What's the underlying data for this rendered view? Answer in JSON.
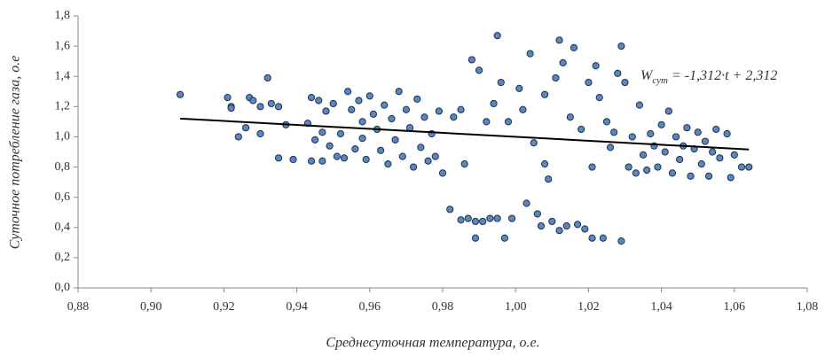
{
  "chart_data": {
    "type": "scatter",
    "y_label": "Суточное потребление газа, о.е",
    "x_label": "Среднесуточная температура, о.е.",
    "color": "#5b87c0",
    "edge_color": "#1f3050",
    "x": [
      0.908,
      0.921,
      0.922,
      0.922,
      0.924,
      0.926,
      0.927,
      0.928,
      0.93,
      0.93,
      0.932,
      0.933,
      0.935,
      0.935,
      0.937,
      0.939,
      0.943,
      0.944,
      0.944,
      0.945,
      0.946,
      0.947,
      0.947,
      0.948,
      0.949,
      0.95,
      0.951,
      0.952,
      0.953,
      0.954,
      0.955,
      0.956,
      0.957,
      0.958,
      0.958,
      0.959,
      0.96,
      0.961,
      0.962,
      0.963,
      0.964,
      0.965,
      0.966,
      0.967,
      0.968,
      0.969,
      0.97,
      0.971,
      0.972,
      0.973,
      0.974,
      0.975,
      0.976,
      0.977,
      0.978,
      0.979,
      0.98,
      0.982,
      0.983,
      0.985,
      0.985,
      0.986,
      0.987,
      0.988,
      0.989,
      0.989,
      0.99,
      0.991,
      0.992,
      0.993,
      0.994,
      0.995,
      0.995,
      0.996,
      0.997,
      0.998,
      0.999,
      1.001,
      1.002,
      1.003,
      1.004,
      1.005,
      1.006,
      1.007,
      1.008,
      1.008,
      1.009,
      1.01,
      1.011,
      1.012,
      1.012,
      1.013,
      1.014,
      1.015,
      1.016,
      1.017,
      1.018,
      1.019,
      1.02,
      1.021,
      1.021,
      1.022,
      1.023,
      1.024,
      1.025,
      1.026,
      1.027,
      1.028,
      1.029,
      1.029,
      1.03,
      1.031,
      1.032,
      1.033,
      1.034,
      1.035,
      1.036,
      1.037,
      1.038,
      1.039,
      1.04,
      1.041,
      1.042,
      1.043,
      1.044,
      1.045,
      1.046,
      1.047,
      1.048,
      1.049,
      1.05,
      1.051,
      1.052,
      1.053,
      1.054,
      1.055,
      1.056,
      1.058,
      1.059,
      1.06,
      1.062,
      1.064
    ],
    "values": [
      1.28,
      1.26,
      1.2,
      1.19,
      1.0,
      1.06,
      1.26,
      1.24,
      1.02,
      1.2,
      1.39,
      1.22,
      1.2,
      0.86,
      1.08,
      0.85,
      1.09,
      1.26,
      0.84,
      0.98,
      1.24,
      1.03,
      0.84,
      1.17,
      0.94,
      1.22,
      0.87,
      1.02,
      0.86,
      1.3,
      1.18,
      0.92,
      1.24,
      1.1,
      0.99,
      0.85,
      1.27,
      1.15,
      1.05,
      0.91,
      1.21,
      0.82,
      1.12,
      0.98,
      1.3,
      0.87,
      1.18,
      1.06,
      0.8,
      1.25,
      0.93,
      1.13,
      0.84,
      1.02,
      0.87,
      1.17,
      0.76,
      0.52,
      1.13,
      0.45,
      1.18,
      0.82,
      0.46,
      1.51,
      0.44,
      0.33,
      1.44,
      0.44,
      1.1,
      0.46,
      1.22,
      1.67,
      0.46,
      1.36,
      0.33,
      1.1,
      0.46,
      1.32,
      1.18,
      0.56,
      1.55,
      0.96,
      0.49,
      0.41,
      1.28,
      0.82,
      0.72,
      0.44,
      1.39,
      1.64,
      0.38,
      1.49,
      0.41,
      1.13,
      1.59,
      0.42,
      1.05,
      0.39,
      1.36,
      0.8,
      0.33,
      1.47,
      1.26,
      0.33,
      1.1,
      0.93,
      1.03,
      1.42,
      1.6,
      0.31,
      1.36,
      0.8,
      1.0,
      0.76,
      1.21,
      0.88,
      0.78,
      1.02,
      0.94,
      0.8,
      1.08,
      0.9,
      1.17,
      0.76,
      1.0,
      0.85,
      0.94,
      1.06,
      0.74,
      0.92,
      1.03,
      0.82,
      0.97,
      0.74,
      0.9,
      1.05,
      0.86,
      1.02,
      0.73,
      0.88,
      0.8,
      0.8
    ],
    "trendline": {
      "slope": -1.312,
      "intercept": 2.312,
      "x": [
        0.908,
        1.064
      ],
      "color": "#000000",
      "label": {
        "symbol": "W",
        "subscript": "сут",
        "rest": " = -1,312·t + 2,312"
      }
    },
    "xlim": [
      0.88,
      1.08
    ],
    "xticks": [
      {
        "value": 0.88,
        "label": "0,88"
      },
      {
        "value": 0.9,
        "label": "0,90"
      },
      {
        "value": 0.92,
        "label": "0,92"
      },
      {
        "value": 0.94,
        "label": "0,94"
      },
      {
        "value": 0.96,
        "label": "0,96"
      },
      {
        "value": 0.98,
        "label": "0,98"
      },
      {
        "value": 1.0,
        "label": "1,00"
      },
      {
        "value": 1.02,
        "label": "1,02"
      },
      {
        "value": 1.04,
        "label": "1,04"
      },
      {
        "value": 1.06,
        "label": "1,06"
      },
      {
        "value": 1.08,
        "label": "1,08"
      }
    ],
    "ylim": [
      0,
      1.8
    ],
    "yticks": [
      {
        "value": 0,
        "label": "0,0"
      },
      {
        "value": 0.2,
        "label": "0,2"
      },
      {
        "value": 0.4,
        "label": "0,4"
      },
      {
        "value": 0.6,
        "label": "0,6"
      },
      {
        "value": 0.8,
        "label": "0,8"
      },
      {
        "value": 1.0,
        "label": "1,0"
      },
      {
        "value": 1.2,
        "label": "1,2"
      },
      {
        "value": 1.4,
        "label": "1,4"
      },
      {
        "value": 1.6,
        "label": "1,6"
      },
      {
        "value": 1.8,
        "label": "1,8"
      }
    ]
  }
}
